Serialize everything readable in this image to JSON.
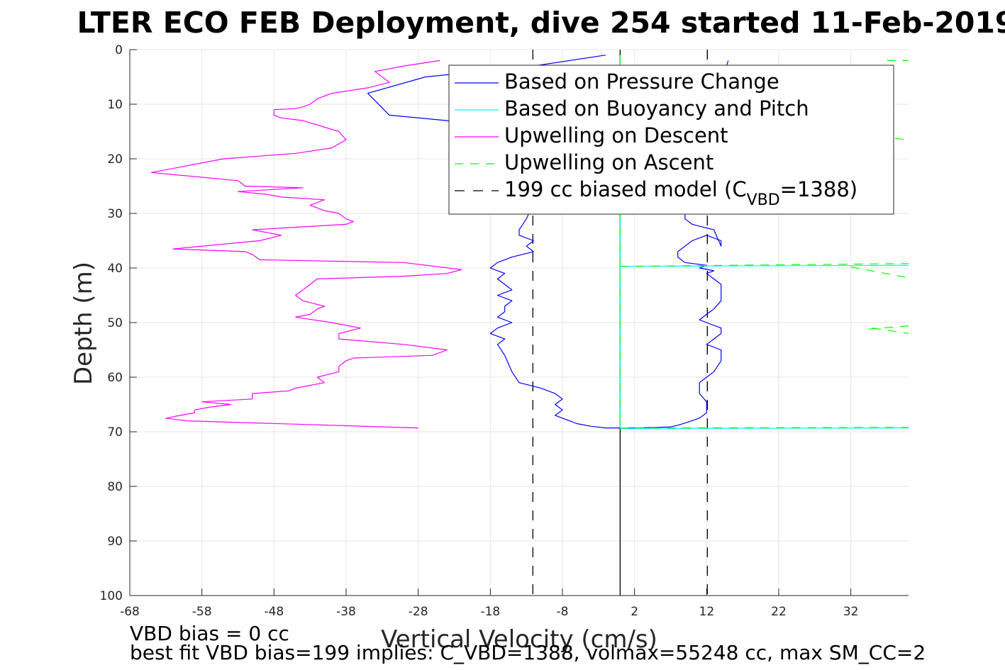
{
  "chart_data": {
    "type": "line",
    "title": "LTER ECO FEB Deployment, dive 254 started 11-Feb-2019",
    "xlabel": "Vertical Velocity (cm/s)",
    "ylabel": "Depth (m)",
    "xlim": [
      -68,
      40
    ],
    "ylim": [
      0,
      100
    ],
    "y_reversed": true,
    "grid": true,
    "x_ticks": [
      -68,
      -58,
      -48,
      -38,
      -28,
      -18,
      -8,
      2,
      12,
      22,
      32
    ],
    "y_ticks": [
      0,
      10,
      20,
      30,
      40,
      50,
      60,
      70,
      80,
      90,
      100
    ],
    "legend_position": "top-right",
    "reference_lines": [
      {
        "x": 0,
        "style": "solid",
        "color": "#000000"
      },
      {
        "x": -12.1,
        "style": "dashed",
        "color": "#000000"
      },
      {
        "x": 12.1,
        "style": "dashed",
        "color": "#000000"
      }
    ],
    "series": [
      {
        "name": "Based on Pressure Change",
        "color": "#0000ff",
        "dash": "",
        "segments": [
          {
            "x": [
              -2,
              -12,
              -27,
              -35,
              -32,
              -24,
              -18,
              -15,
              -13,
              -12,
              -12,
              -13,
              -14,
              -14,
              -12,
              -13,
              -12,
              -15,
              -17,
              -18,
              -16,
              -17,
              -16,
              -15,
              -17,
              -15,
              -16,
              -16,
              -17,
              -15,
              -17,
              -18,
              -16,
              -17,
              -16,
              -15,
              -14,
              -11,
              -9,
              -8,
              -9,
              -8,
              -9,
              -8,
              -7,
              -6,
              -4,
              -2,
              0
            ],
            "y": [
              1,
              3,
              5,
              8,
              12,
              13,
              15,
              17,
              20,
              24,
              28,
              31,
              33,
              34,
              35,
              36,
              37,
              38,
              39,
              40,
              41,
              42,
              43,
              44,
              45,
              46,
              47,
              48,
              49,
              50,
              51,
              52,
              53,
              54,
              56,
              59,
              61,
              62,
              63,
              64,
              65,
              66,
              67,
              67.5,
              68,
              68.5,
              69,
              69.3,
              69.3
            ]
          },
          {
            "x": [
              0,
              2,
              5,
              7,
              8,
              9,
              11,
              12,
              12,
              11,
              11,
              12,
              13,
              14,
              14,
              12,
              13,
              14,
              14,
              12,
              11,
              12,
              13,
              14,
              14,
              13,
              12,
              13,
              11,
              12,
              9,
              8,
              8,
              9,
              10,
              12,
              14,
              14,
              13,
              10,
              9,
              9,
              10,
              12,
              13,
              15
            ],
            "y": [
              69.3,
              69.3,
              69.2,
              69.1,
              68.8,
              68.4,
              67.5,
              66.5,
              64.5,
              63,
              61,
              60,
              59,
              57,
              55,
              54,
              53,
              52,
              51,
              50,
              49.5,
              48.5,
              47.5,
              46,
              43,
              42,
              41,
              40.5,
              40,
              39.5,
              39,
              38,
              37,
              36,
              35,
              34,
              35,
              36,
              33,
              32,
              31,
              28,
              25,
              20,
              10,
              2
            ]
          }
        ]
      },
      {
        "name": "Based on Buoyancy and Pitch",
        "color": "#00ffff",
        "dash": "",
        "segments": [
          {
            "x": [
              0,
              0
            ],
            "y": [
              1,
              69.3
            ]
          },
          {
            "x": [
              0,
              40
            ],
            "y": [
              69.4,
              69.3
            ]
          },
          {
            "x": [
              0,
              40
            ],
            "y": [
              39.7,
              39.5
            ]
          }
        ]
      },
      {
        "name": "Upwelling on Descent",
        "color": "#ff00ff",
        "dash": "",
        "segments": [
          {
            "x": [
              -25,
              -30,
              -34,
              -32,
              -35,
              -40,
              -42,
              -43,
              -44,
              -45,
              -48,
              -48,
              -47,
              -44,
              -39,
              -38,
              -40,
              -45,
              -55,
              -65,
              -53,
              -52,
              -44,
              -53,
              -49,
              -47,
              -41,
              -43,
              -41,
              -39,
              -38,
              -37,
              -38,
              -51,
              -47,
              -50,
              -62,
              -52,
              -51,
              -50,
              -30,
              -22,
              -24,
              -30,
              -42,
              -43,
              -44,
              -45,
              -44,
              -41,
              -42,
              -43,
              -45,
              -40,
              -38,
              -36,
              -39,
              -39,
              -30,
              -24,
              -26,
              -37,
              -38,
              -39,
              -39,
              -42,
              -41,
              -45,
              -46,
              -51,
              -51,
              -58,
              -54,
              -57,
              -59,
              -59,
              -61,
              -63,
              -60,
              -28
            ],
            "y": [
              2,
              3,
              4,
              6,
              7,
              8,
              9,
              10,
              10.5,
              10.8,
              11,
              12,
              12.5,
              13,
              15,
              16.5,
              18,
              19,
              20,
              22.5,
              24,
              25,
              25.3,
              26,
              26.5,
              27,
              27.5,
              28.5,
              29.5,
              30,
              31,
              31.5,
              32,
              33,
              34,
              35,
              36.5,
              37,
              37.5,
              38.5,
              39,
              40.3,
              41,
              41.5,
              42,
              43,
              44,
              45,
              46,
              47,
              47.5,
              48.5,
              49,
              50,
              50.5,
              51,
              52,
              53,
              54,
              55,
              56,
              56.5,
              57,
              58,
              59,
              60,
              61,
              62,
              62.5,
              63,
              64,
              64.5,
              65,
              65.5,
              66,
              66.5,
              67,
              67.5,
              68,
              69.3
            ]
          }
        ]
      },
      {
        "name": "Upwelling on Ascent",
        "color": "#00ff00",
        "dash": "12,10",
        "segments": [
          {
            "x": [
              0,
              0
            ],
            "y": [
              1,
              69.3
            ]
          },
          {
            "x": [
              0,
              40
            ],
            "y": [
              69.3,
              69.2
            ]
          },
          {
            "x": [
              0,
              40
            ],
            "y": [
              39.7,
              39.2
            ]
          },
          {
            "x": [
              32,
              40
            ],
            "y": [
              39.8,
              41.8
            ]
          },
          {
            "x": [
              35,
              40
            ],
            "y": [
              51,
              52
            ]
          },
          {
            "x": [
              34.5,
              40
            ],
            "y": [
              51.2,
              50.6
            ]
          },
          {
            "x": [
              37,
              40
            ],
            "y": [
              2,
              2
            ]
          },
          {
            "x": [
              36,
              40
            ],
            "y": [
              16,
              16.5
            ]
          }
        ]
      },
      {
        "name": "199 cc biased model (C_VBD=1388)",
        "legend_label": "199 cc biased model (C",
        "legend_sub": "VBD",
        "legend_suffix": "=1388)",
        "color": "#000000",
        "dash": "14,12",
        "segments": []
      }
    ]
  },
  "footer": {
    "line1": "VBD bias = 0 cc",
    "line2": "best fit VBD bias=199 implies: C_VBD=1388, volmax=55248 cc, max SM_CC=2"
  }
}
